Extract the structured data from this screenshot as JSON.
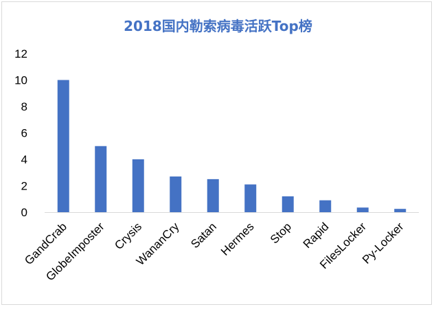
{
  "chart_data": {
    "type": "bar",
    "title": "2018国内勒索病毒活跃Top榜",
    "xlabel": "",
    "ylabel": "",
    "categories": [
      "GandCrab",
      "GlobeImposter",
      "Crysis",
      "WananCry",
      "Satan",
      "Hermes",
      "Stop",
      "Rapid",
      "FilesLocker",
      "Py-Locker"
    ],
    "values": [
      10,
      5,
      4,
      2.7,
      2.5,
      2.1,
      1.2,
      0.9,
      0.35,
      0.25
    ],
    "ylim": [
      0,
      12
    ],
    "yticks": [
      "0",
      "2",
      "4",
      "6",
      "8",
      "10",
      "12"
    ],
    "grid": false,
    "legend": "none",
    "bar_color": "#4472c4",
    "title_color": "#4472c4"
  }
}
